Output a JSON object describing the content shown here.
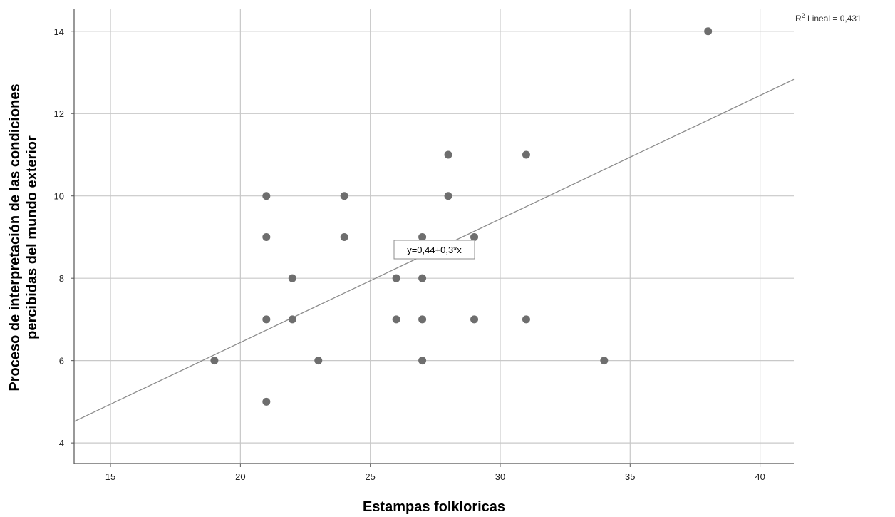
{
  "chart_data": {
    "type": "scatter",
    "xlabel": "Estampas folkloricas",
    "ylabel_lines": [
      "Proceso de interpretación de las condiciones",
      "percibidas del mundo exterior"
    ],
    "xlim": [
      13.6,
      41.3
    ],
    "ylim": [
      3.5,
      14.55
    ],
    "xticks": [
      15,
      20,
      25,
      30,
      35,
      40
    ],
    "yticks": [
      4,
      6,
      8,
      10,
      12,
      14
    ],
    "xtick_labels": [
      "15",
      "20",
      "25",
      "30",
      "35",
      "40"
    ],
    "ytick_labels": [
      "4",
      "6",
      "8",
      "10",
      "12",
      "14"
    ],
    "grid": true,
    "points": [
      [
        19,
        6
      ],
      [
        21,
        5
      ],
      [
        21,
        7
      ],
      [
        21,
        9
      ],
      [
        21,
        10
      ],
      [
        22,
        7
      ],
      [
        22,
        8
      ],
      [
        23,
        6
      ],
      [
        24,
        9
      ],
      [
        24,
        10
      ],
      [
        26,
        7
      ],
      [
        26,
        8
      ],
      [
        27,
        6
      ],
      [
        27,
        7
      ],
      [
        27,
        8
      ],
      [
        27,
        9
      ],
      [
        28,
        10
      ],
      [
        28,
        11
      ],
      [
        29,
        7
      ],
      [
        29,
        9
      ],
      [
        31,
        7
      ],
      [
        31,
        11
      ],
      [
        34,
        6
      ],
      [
        38,
        14
      ]
    ],
    "fit_line": {
      "intercept": 0.44,
      "slope": 0.3
    },
    "equation_label": "y=0,44+0,3*x",
    "r2_label": {
      "prefix": "R",
      "superscript": "2",
      "text": " Lineal = 0,431"
    },
    "colors": {
      "points": "#6e6e6e",
      "fit_line": "#8c8c8c",
      "grid": "#c8c8c8",
      "axis": "#555555"
    }
  }
}
